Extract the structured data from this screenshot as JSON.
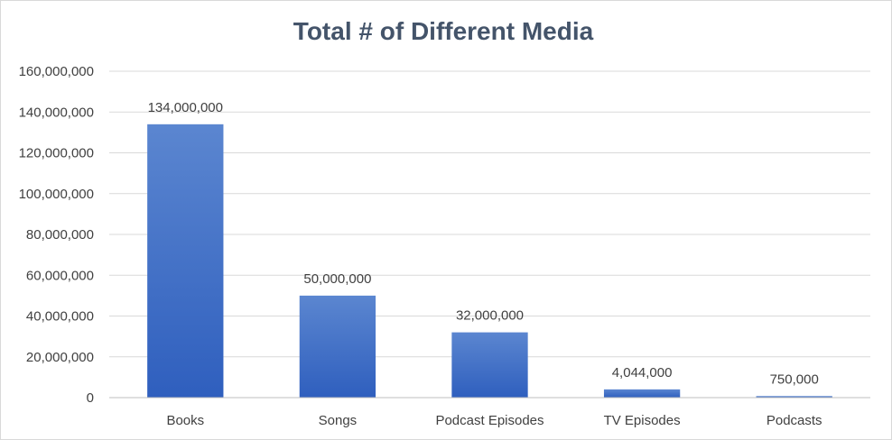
{
  "chart_data": {
    "type": "bar",
    "title": "Total # of Different Media",
    "xlabel": "",
    "ylabel": "",
    "categories": [
      "Books",
      "Songs",
      "Podcast Episodes",
      "TV Episodes",
      "Podcasts"
    ],
    "values": [
      134000000,
      50000000,
      32000000,
      4044000,
      750000
    ],
    "data_labels": [
      "134,000,000",
      "50,000,000",
      "32,000,000",
      "4,044,000",
      "750,000"
    ],
    "ylim": [
      0,
      160000000
    ],
    "yticks": [
      0,
      20000000,
      40000000,
      60000000,
      80000000,
      100000000,
      120000000,
      140000000,
      160000000
    ],
    "ytick_labels": [
      "0",
      "20,000,000",
      "40,000,000",
      "60,000,000",
      "80,000,000",
      "100,000,000",
      "120,000,000",
      "140,000,000",
      "160,000,000"
    ],
    "grid": true,
    "legend": "none",
    "bar_color_top": "#5b86d0",
    "bar_color_bottom": "#2f5fbe",
    "title_color": "#44546a"
  }
}
